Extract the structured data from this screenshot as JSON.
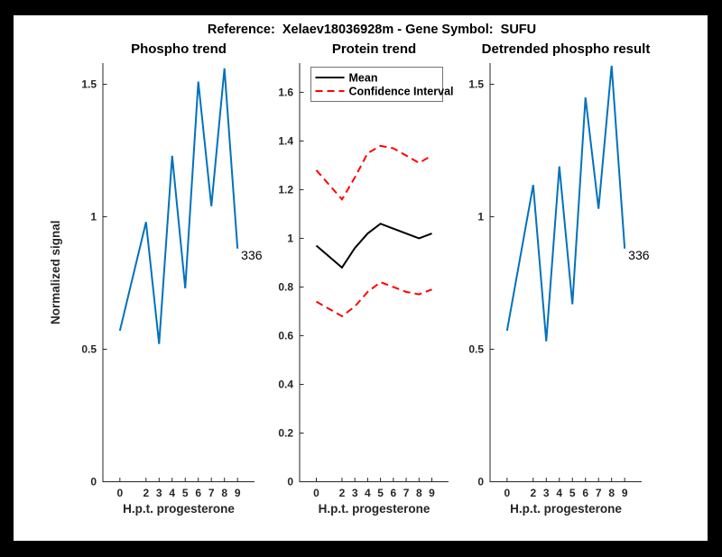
{
  "figure": {
    "title": "Reference:  Xelaev18036928m - Gene Symbol:  SUFU"
  },
  "colors": {
    "phospho_blue": "#0072BD",
    "mean_black": "#000000",
    "ci_red": "#FF0000",
    "axis": "#262626",
    "legend_border": "#737373",
    "frame": "#000000",
    "canvas": "#FFFFFF"
  },
  "chart_data": [
    {
      "type": "line",
      "title": "Phospho trend",
      "xlabel": "H.p.t. progesterone",
      "ylabel": "Normalized signal",
      "x": [
        0,
        2,
        3,
        4,
        5,
        6,
        7,
        8,
        9
      ],
      "xlim": [
        -1.3,
        10.3
      ],
      "ylim": [
        0,
        1.58
      ],
      "xticks": [
        0,
        2,
        3,
        4,
        5,
        6,
        7,
        8,
        9
      ],
      "xtick_labels": [
        "0",
        "2",
        "3",
        "4",
        "5",
        "6",
        "7",
        "8",
        "9"
      ],
      "yticks": [
        0,
        0.5,
        1,
        1.5
      ],
      "ytick_labels": [
        "0",
        "0.5",
        "1",
        "1.5"
      ],
      "grid": false,
      "legend": null,
      "series": [
        {
          "name": "phospho-signal",
          "color": "#0072BD",
          "dash": "solid",
          "width": 2,
          "values": [
            0.57,
            0.98,
            0.52,
            1.23,
            0.73,
            1.51,
            1.04,
            1.56,
            0.88
          ]
        }
      ],
      "end_label": "336"
    },
    {
      "type": "line",
      "title": "Protein trend",
      "xlabel": "H.p.t. progesterone",
      "ylabel": "",
      "x": [
        0,
        2,
        3,
        4,
        5,
        6,
        7,
        8,
        9
      ],
      "xlim": [
        -1.3,
        10.3
      ],
      "ylim": [
        0,
        1.72
      ],
      "xticks": [
        0,
        2,
        3,
        4,
        5,
        6,
        7,
        8,
        9
      ],
      "xtick_labels": [
        "0",
        "2",
        "3",
        "4",
        "5",
        "6",
        "7",
        "8",
        "9"
      ],
      "yticks": [
        0,
        0.2,
        0.4,
        0.6,
        0.8,
        1,
        1.2,
        1.4,
        1.6
      ],
      "ytick_labels": [
        "0",
        "0.2",
        "0.4",
        "0.6",
        "0.8",
        "1",
        "1.2",
        "1.4",
        "1.6"
      ],
      "grid": false,
      "legend": {
        "position": "top-left",
        "entries": [
          {
            "label": "Mean",
            "color": "#000000",
            "dash": "solid"
          },
          {
            "label": "Confidence Interval",
            "color": "#FF0000",
            "dash": "dashed"
          }
        ]
      },
      "series": [
        {
          "name": "mean",
          "color": "#000000",
          "dash": "solid",
          "width": 2,
          "values": [
            0.97,
            0.88,
            0.96,
            1.02,
            1.06,
            1.04,
            1.02,
            1.0,
            1.02
          ]
        },
        {
          "name": "confidence-interval-upper",
          "color": "#FF0000",
          "dash": "dashed",
          "width": 2,
          "values": [
            1.28,
            1.16,
            1.25,
            1.35,
            1.38,
            1.37,
            1.34,
            1.31,
            1.34
          ]
        },
        {
          "name": "confidence-interval-lower",
          "color": "#FF0000",
          "dash": "dashed",
          "width": 2,
          "values": [
            0.74,
            0.68,
            0.72,
            0.78,
            0.82,
            0.8,
            0.78,
            0.77,
            0.79
          ]
        }
      ],
      "end_label": null
    },
    {
      "type": "line",
      "title": "Detrended phospho result",
      "xlabel": "H.p.t. progesterone",
      "ylabel": "",
      "x": [
        0,
        2,
        3,
        4,
        5,
        6,
        7,
        8,
        9
      ],
      "xlim": [
        -1.3,
        10.3
      ],
      "ylim": [
        0,
        1.58
      ],
      "xticks": [
        0,
        2,
        3,
        4,
        5,
        6,
        7,
        8,
        9
      ],
      "xtick_labels": [
        "0",
        "2",
        "3",
        "4",
        "5",
        "6",
        "7",
        "8",
        "9"
      ],
      "yticks": [
        0,
        0.5,
        1,
        1.5
      ],
      "ytick_labels": [
        "0",
        "0.5",
        "1",
        "1.5"
      ],
      "grid": false,
      "legend": null,
      "series": [
        {
          "name": "detrended-phospho-signal",
          "color": "#0072BD",
          "dash": "solid",
          "width": 2,
          "values": [
            0.57,
            1.12,
            0.53,
            1.19,
            0.67,
            1.45,
            1.03,
            1.57,
            0.88
          ]
        }
      ],
      "end_label": "336"
    }
  ]
}
